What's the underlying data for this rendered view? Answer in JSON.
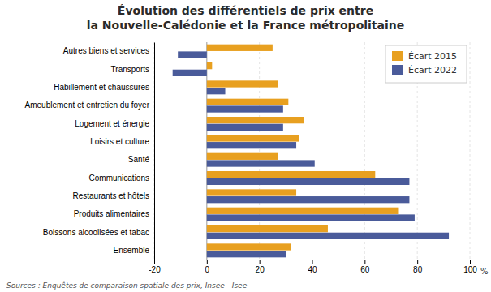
{
  "chart_data": {
    "type": "bar",
    "orientation": "horizontal",
    "title": "Évolution des différentiels de prix entre",
    "subtitle": "la Nouvelle-Calédonie et la France métropolitaine",
    "categories": [
      "Autres biens et services",
      "Transports",
      "Habillement et chaussures",
      "Ameublement et entretien du foyer",
      "Logement et énergie",
      "Loisirs et culture",
      "Santé",
      "Communications",
      "Restaurants et hôtels",
      "Produits alimentaires",
      "Boissons alcoolisées et tabac",
      "Ensemble"
    ],
    "series": [
      {
        "name": "Écart 2015",
        "color": "#E8A020",
        "values": [
          25,
          2,
          27,
          31,
          37,
          35,
          27,
          64,
          34,
          73,
          46,
          32
        ]
      },
      {
        "name": "Écart 2022",
        "color": "#4A5B9A",
        "values": [
          -11,
          -13,
          7,
          29,
          29,
          34,
          41,
          77,
          77,
          79,
          92,
          30
        ]
      }
    ],
    "xlabel": "%",
    "xlim": [
      -20,
      100
    ],
    "xticks": [
      -20,
      0,
      20,
      40,
      60,
      80,
      100
    ],
    "grid": true,
    "legend": "upper right",
    "annotations": [
      "Sources : Enquêtes de comparaison spatiale des prix, Insee - Isee"
    ]
  }
}
